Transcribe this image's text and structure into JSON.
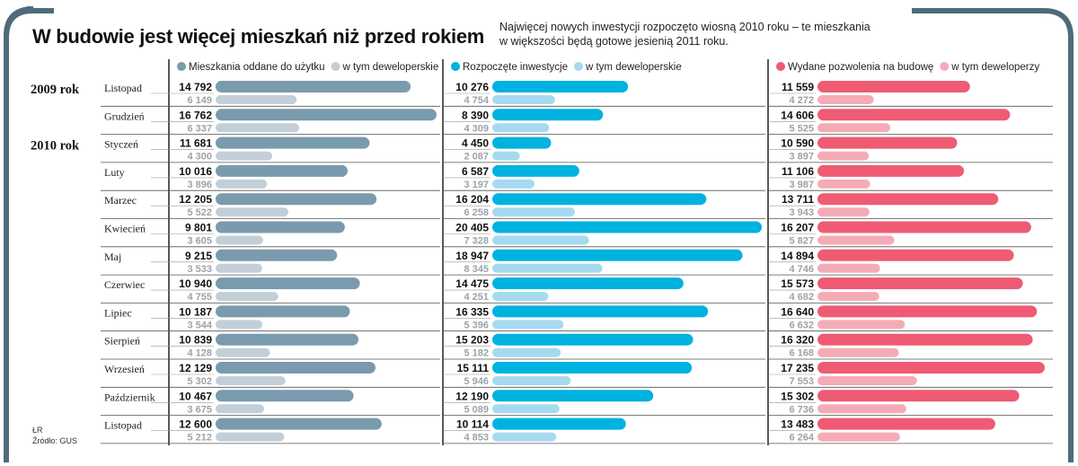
{
  "title": "W budowie jest więcej mieszkań niż przed rokiem",
  "subtitle": "Najwięcej nowych inwestycji rozpoczęto wiosną 2010 roku – te mieszkania w większości będą gotowe jesienią 2011 roku.",
  "footer": {
    "author": "ŁR",
    "source": "Źródło: GUS"
  },
  "colors": {
    "frame": "#4f6b7a",
    "panel1_main": "#7a9aae",
    "panel1_sub": "#c3cfd8",
    "panel2_main": "#00b2e0",
    "panel2_sub": "#a6daf0",
    "panel3_main": "#ee5b73",
    "panel3_sub": "#f5abb5",
    "label_sub": "#9aa3aa"
  },
  "chart_data": {
    "type": "bar",
    "orientation": "horizontal",
    "year_labels": [
      {
        "label": "2009 rok",
        "row": 0
      },
      {
        "label": "2010 rok",
        "row": 2
      }
    ],
    "categories": [
      "Listopad",
      "Grudzień",
      "Styczeń",
      "Luty",
      "Marzec",
      "Kwiecień",
      "Maj",
      "Czerwiec",
      "Lipiec",
      "Sierpień",
      "Wrzesień",
      "Październik",
      "Listopad"
    ],
    "panels": [
      {
        "legend": [
          "Mieszkania oddane do użytku",
          "w tym deweloperskie"
        ],
        "series": [
          {
            "name": "Mieszkania oddane do użytku",
            "values": [
              14792,
              16762,
              11681,
              10016,
              12205,
              9801,
              9215,
              10940,
              10187,
              10839,
              12129,
              10467,
              12600
            ]
          },
          {
            "name": "w tym deweloperskie",
            "values": [
              6149,
              6337,
              4300,
              3896,
              5522,
              3605,
              3533,
              4755,
              3544,
              4128,
              5302,
              3675,
              5212
            ]
          }
        ],
        "labels_main": [
          "14 792",
          "16 762",
          "11 681",
          "10 016",
          "12 205",
          "9 801",
          "9 215",
          "10 940",
          "10 187",
          "10 839",
          "12 129",
          "10 467",
          "12 600"
        ],
        "labels_sub": [
          "6 149",
          "6 337",
          "4 300",
          "3 896",
          "5 522",
          "3 605",
          "3 533",
          "4 755",
          "3 544",
          "4 128",
          "5 302",
          "3 675",
          "5 212"
        ]
      },
      {
        "legend": [
          "Rozpoczęte inwestycje",
          "w tym deweloperskie"
        ],
        "series": [
          {
            "name": "Rozpoczęte inwestycje",
            "values": [
              10276,
              8390,
              4450,
              6587,
              16204,
              20405,
              18947,
              14475,
              16335,
              15203,
              15111,
              12190,
              10114
            ]
          },
          {
            "name": "w tym deweloperskie",
            "values": [
              4754,
              4309,
              2087,
              3197,
              6258,
              7328,
              8345,
              4251,
              5396,
              5182,
              5946,
              5089,
              4853
            ]
          }
        ],
        "labels_main": [
          "10 276",
          "8 390",
          "4 450",
          "6 587",
          "16 204",
          "20 405",
          "18 947",
          "14 475",
          "16 335",
          "15 203",
          "15 111",
          "12 190",
          "10 114"
        ],
        "labels_sub": [
          "4 754",
          "4 309",
          "2 087",
          "3 197",
          "6 258",
          "7 328",
          "8 345",
          "4 251",
          "5 396",
          "5 182",
          "5 946",
          "5 089",
          "4 853"
        ]
      },
      {
        "legend": [
          "Wydane pozwolenia na budowę",
          "w tym deweloperzy"
        ],
        "series": [
          {
            "name": "Wydane pozwolenia na budowę",
            "values": [
              11559,
              14606,
              10590,
              11106,
              13711,
              16207,
              14894,
              15573,
              16640,
              16320,
              17235,
              15302,
              13483
            ]
          },
          {
            "name": "w tym deweloperzy",
            "values": [
              4272,
              5525,
              3897,
              3987,
              3943,
              5827,
              4746,
              4682,
              6632,
              6168,
              7553,
              6736,
              6264
            ]
          }
        ],
        "labels_main": [
          "11 559",
          "14 606",
          "10 590",
          "11 106",
          "13 711",
          "16 207",
          "14 894",
          "15 573",
          "16 640",
          "16 320",
          "17 235",
          "15 302",
          "13 483"
        ],
        "labels_sub": [
          "4 272",
          "5 525",
          "3 897",
          "3 987",
          "3 943",
          "5 827",
          "4 746",
          "4 682",
          "6 632",
          "6 168",
          "7 553",
          "6 736",
          "6 264"
        ]
      }
    ]
  }
}
